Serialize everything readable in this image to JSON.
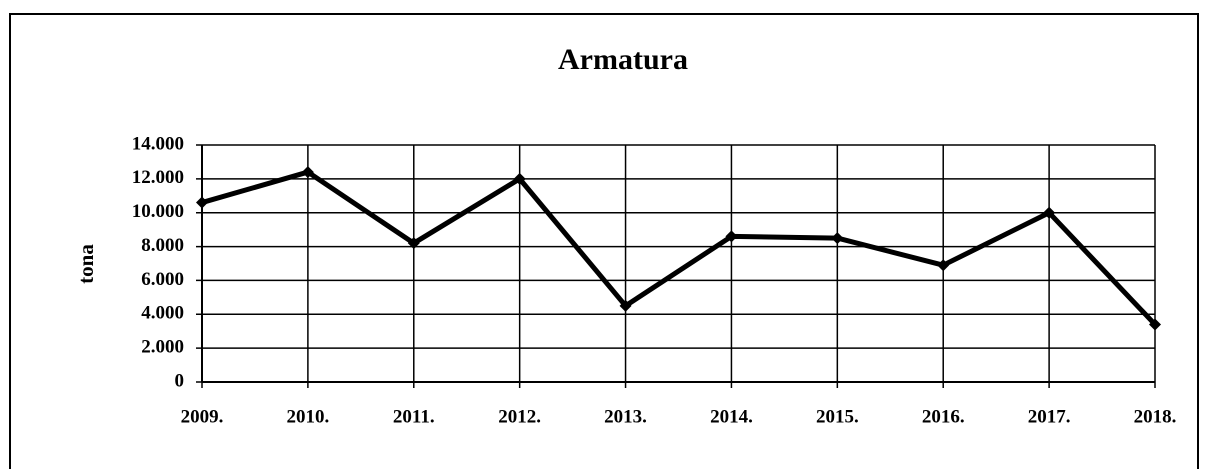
{
  "chart_data": {
    "type": "line",
    "title": "Armatura",
    "y_label": "tona",
    "categories": [
      "2009.",
      "2010.",
      "2011.",
      "2012.",
      "2013.",
      "2014.",
      "2015.",
      "2016.",
      "2017.",
      "2018."
    ],
    "values": [
      10600,
      12400,
      8200,
      12000,
      4500,
      8600,
      8500,
      6900,
      10000,
      3400
    ],
    "color": "#000000",
    "ylim": [
      0,
      14000
    ],
    "yticks": [
      0,
      {
        "value": 2000,
        "label": "2.000"
      },
      {
        "value": 4000,
        "label": "4.000"
      },
      {
        "value": 6000,
        "label": "6.000"
      },
      {
        "value": 8000,
        "label": "8.000"
      },
      {
        "value": 10000,
        "label": "10.000"
      },
      {
        "value": 12000,
        "label": "12.000"
      },
      {
        "value": 14000,
        "label": "14.000"
      }
    ],
    "grid": true
  }
}
